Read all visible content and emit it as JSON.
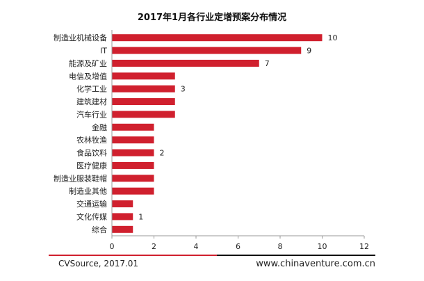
{
  "chart_data": {
    "type": "bar",
    "orientation": "horizontal",
    "title": "2017年1月各行业定增预案分布情况",
    "categories": [
      "制造业机械设备",
      "IT",
      "能源及矿业",
      "电信及增值",
      "化学工业",
      "建筑建材",
      "汽车行业",
      "金融",
      "农林牧渔",
      "食品饮料",
      "医疗健康",
      "制造业服装鞋帽",
      "制造业其他",
      "交通运输",
      "文化传媒",
      "综合"
    ],
    "values": [
      10,
      9,
      7,
      3,
      3,
      3,
      3,
      2,
      2,
      2,
      2,
      2,
      2,
      1,
      1,
      1
    ],
    "data_labels": [
      {
        "category": "制造业机械设备",
        "text": "10"
      },
      {
        "category": "IT",
        "text": "9"
      },
      {
        "category": "能源及矿业",
        "text": "7"
      },
      {
        "category": "化学工业",
        "text": "3"
      },
      {
        "category": "食品饮料",
        "text": "2"
      },
      {
        "category": "文化传媒",
        "text": "1"
      }
    ],
    "xticks": [
      "0",
      "2",
      "4",
      "6",
      "8",
      "10",
      "12"
    ],
    "xlim": [
      0,
      12
    ],
    "grid": false,
    "bar_color": "#d0202e",
    "accent_line_colors": [
      "#d0202e",
      "#111111"
    ]
  },
  "footer": {
    "source": "CVSource, 2017.01",
    "site": "www.chinaventure.com.cn"
  }
}
